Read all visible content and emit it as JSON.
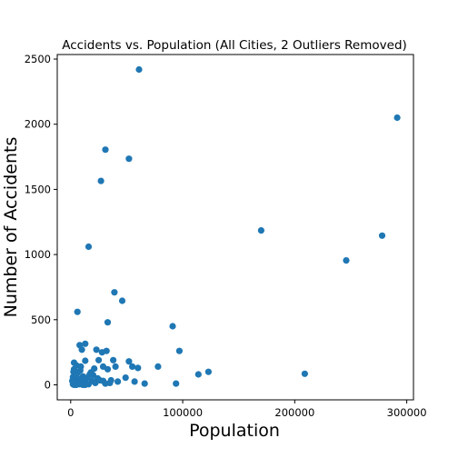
{
  "chart_data": {
    "type": "scatter",
    "title": "Accidents vs. Population (All Cities, 2 Outliers Removed)",
    "xlabel": "Population",
    "ylabel": "Number of Accidents",
    "xlim": [
      -12000,
      306000
    ],
    "ylim": [
      -115,
      2535
    ],
    "xticks": [
      0,
      100000,
      200000,
      300000
    ],
    "xtick_labels": [
      "0",
      "100000",
      "200000",
      "300000"
    ],
    "yticks": [
      0,
      500,
      1000,
      1500,
      2000,
      2500
    ],
    "ytick_labels": [
      "0",
      "500",
      "1000",
      "1500",
      "2000",
      "2500"
    ],
    "grid": false,
    "color": "#1f77b4",
    "points": [
      [
        61000,
        2420
      ],
      [
        291500,
        2050
      ],
      [
        31000,
        1805
      ],
      [
        52000,
        1735
      ],
      [
        27000,
        1565
      ],
      [
        170000,
        1185
      ],
      [
        278000,
        1145
      ],
      [
        16000,
        1060
      ],
      [
        246000,
        955
      ],
      [
        39000,
        710
      ],
      [
        46000,
        645
      ],
      [
        6000,
        560
      ],
      [
        33000,
        480
      ],
      [
        91000,
        450
      ],
      [
        13000,
        315
      ],
      [
        8000,
        305
      ],
      [
        10000,
        270
      ],
      [
        23000,
        270
      ],
      [
        32000,
        260
      ],
      [
        28000,
        250
      ],
      [
        97000,
        260
      ],
      [
        25000,
        190
      ],
      [
        13000,
        185
      ],
      [
        38000,
        190
      ],
      [
        52000,
        180
      ],
      [
        3000,
        170
      ],
      [
        5000,
        150
      ],
      [
        9000,
        140
      ],
      [
        29000,
        140
      ],
      [
        40000,
        140
      ],
      [
        55000,
        140
      ],
      [
        60000,
        130
      ],
      [
        78000,
        140
      ],
      [
        3000,
        120
      ],
      [
        21000,
        125
      ],
      [
        33000,
        120
      ],
      [
        123000,
        100
      ],
      [
        2500,
        100
      ],
      [
        114000,
        80
      ],
      [
        209000,
        85
      ],
      [
        6000,
        90
      ],
      [
        17000,
        80
      ],
      [
        20000,
        75
      ],
      [
        2000,
        60
      ],
      [
        11000,
        65
      ],
      [
        15000,
        55
      ],
      [
        24000,
        50
      ],
      [
        49000,
        55
      ],
      [
        3000,
        40
      ],
      [
        7000,
        45
      ],
      [
        12000,
        35
      ],
      [
        19000,
        30
      ],
      [
        29000,
        30
      ],
      [
        36000,
        35
      ],
      [
        42000,
        25
      ],
      [
        57000,
        25
      ],
      [
        2500,
        20
      ],
      [
        6000,
        25
      ],
      [
        9000,
        15
      ],
      [
        14000,
        10
      ],
      [
        22000,
        15
      ],
      [
        31000,
        10
      ],
      [
        66000,
        10
      ],
      [
        94000,
        10
      ],
      [
        2000,
        5
      ],
      [
        4000,
        5
      ],
      [
        8000,
        5
      ],
      [
        11000,
        0
      ],
      [
        16000,
        5
      ],
      [
        3000,
        0
      ],
      [
        5000,
        0
      ],
      [
        7000,
        10
      ],
      [
        10000,
        5
      ],
      [
        13000,
        0
      ],
      [
        1500,
        30
      ],
      [
        4500,
        70
      ],
      [
        8500,
        110
      ],
      [
        18000,
        95
      ],
      [
        26000,
        35
      ],
      [
        35000,
        15
      ]
    ]
  }
}
